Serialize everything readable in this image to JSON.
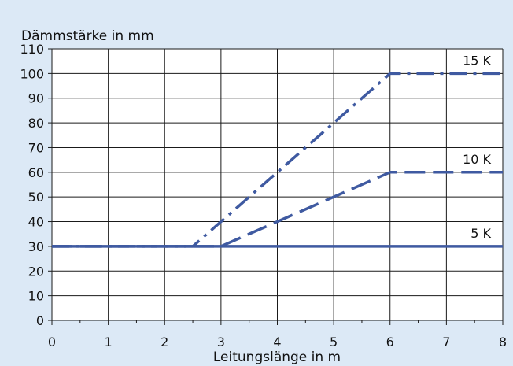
{
  "chart_data": {
    "type": "line",
    "ylabel": "Dämmstärke in mm",
    "xlabel": "Leitungslänge in m",
    "xlim": [
      0,
      8
    ],
    "ylim": [
      0,
      110
    ],
    "x_ticks": [
      0,
      1,
      2,
      3,
      4,
      5,
      6,
      7,
      8
    ],
    "y_ticks": [
      0,
      10,
      20,
      30,
      40,
      50,
      60,
      70,
      80,
      90,
      100,
      110
    ],
    "grid": true,
    "series": [
      {
        "name": "5 K",
        "style": "solid",
        "points": [
          [
            0,
            30
          ],
          [
            8,
            30
          ]
        ]
      },
      {
        "name": "10 K",
        "style": "dashed",
        "points": [
          [
            0,
            30
          ],
          [
            3,
            30
          ],
          [
            6,
            60
          ],
          [
            8,
            60
          ]
        ]
      },
      {
        "name": "15 K",
        "style": "dash-dot",
        "points": [
          [
            0,
            30
          ],
          [
            2.5,
            30
          ],
          [
            6,
            100
          ],
          [
            8,
            100
          ]
        ]
      }
    ],
    "line_color": "#3f5aa1",
    "background_color": "#dce9f6",
    "plot_background_color": "#ffffff"
  }
}
